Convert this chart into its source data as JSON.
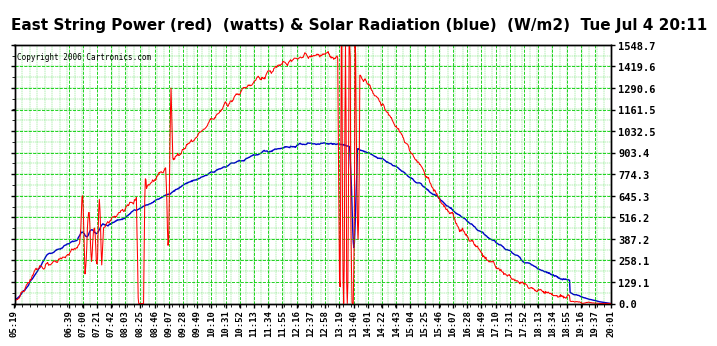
{
  "title": "East String Power (red)  (watts) & Solar Radiation (blue)  (W/m2)  Tue Jul 4 20:11",
  "copyright": "Copyright 2006 Cartronics.com",
  "background_color": "#ffffff",
  "plot_background": "#ffffff",
  "grid_color": "#00cc00",
  "y_ticks": [
    0.0,
    129.1,
    258.1,
    387.2,
    516.2,
    645.3,
    774.3,
    903.4,
    1032.5,
    1161.5,
    1290.6,
    1419.6,
    1548.7
  ],
  "x_labels": [
    "05:19",
    "06:39",
    "07:00",
    "07:21",
    "07:42",
    "08:03",
    "08:25",
    "08:46",
    "09:07",
    "09:28",
    "09:49",
    "10:10",
    "10:31",
    "10:52",
    "11:13",
    "11:34",
    "11:55",
    "12:16",
    "12:37",
    "12:58",
    "13:19",
    "13:40",
    "14:01",
    "14:22",
    "14:43",
    "15:04",
    "15:25",
    "15:46",
    "16:07",
    "16:28",
    "16:49",
    "17:10",
    "17:31",
    "17:52",
    "18:13",
    "18:34",
    "18:55",
    "19:16",
    "19:37",
    "20:01"
  ],
  "ylim": [
    0,
    1548.7
  ],
  "line_red_color": "#ff0000",
  "line_blue_color": "#0000cc",
  "title_fontsize": 11,
  "axis_fontsize": 6.5,
  "tick_fontsize": 7.5
}
